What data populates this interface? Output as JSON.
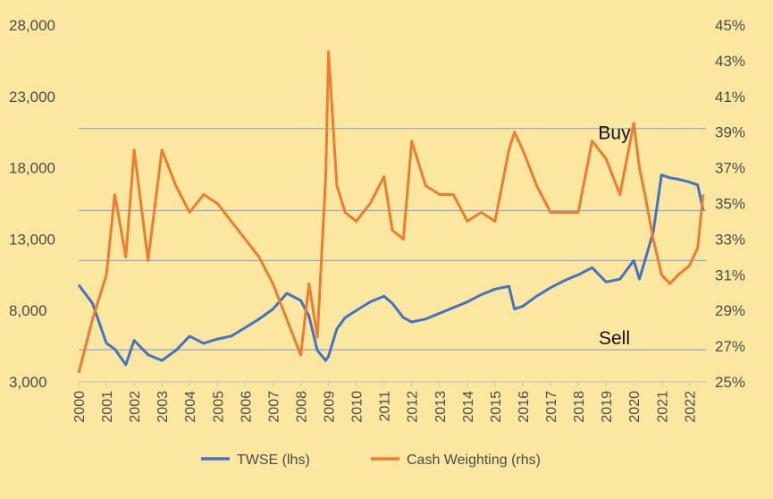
{
  "background_color": "#FCE7A0",
  "chart_data": {
    "type": "line",
    "title": "",
    "x": [
      2000,
      2000.5,
      2001,
      2001.3,
      2001.7,
      2002,
      2002.5,
      2003,
      2003.5,
      2004,
      2004.5,
      2005,
      2005.5,
      2006,
      2006.5,
      2007,
      2007.5,
      2008,
      2008.3,
      2008.6,
      2008.9,
      2009,
      2009.3,
      2009.6,
      2010,
      2010.5,
      2011,
      2011.3,
      2011.7,
      2012,
      2012.5,
      2013,
      2013.5,
      2014,
      2014.5,
      2015,
      2015.5,
      2015.7,
      2016,
      2016.5,
      2017,
      2017.5,
      2018,
      2018.5,
      2019,
      2019.5,
      2020,
      2020.2,
      2020.4,
      2020.7,
      2021,
      2021.3,
      2021.6,
      2022,
      2022.3,
      2022.5
    ],
    "series": [
      {
        "name": "TWSE (lhs)",
        "axis": "left",
        "color": "#4472C4",
        "values": [
          9800,
          8500,
          5700,
          5300,
          4200,
          5900,
          4900,
          4500,
          5200,
          6200,
          5700,
          6000,
          6200,
          6800,
          7400,
          8100,
          9200,
          8700,
          7600,
          5200,
          4500,
          4800,
          6700,
          7500,
          8000,
          8600,
          9000,
          8500,
          7500,
          7200,
          7400,
          7800,
          8200,
          8600,
          9100,
          9500,
          9700,
          8100,
          8300,
          9000,
          9600,
          10100,
          10500,
          11000,
          10000,
          10200,
          11500,
          10200,
          11500,
          13500,
          17500,
          17300,
          17200,
          17000,
          16800,
          15000
        ]
      },
      {
        "name": "Cash Weighting (rhs)",
        "axis": "right",
        "color": "#ED7D31",
        "values": [
          25.5,
          28.5,
          31,
          35.5,
          32,
          38,
          31.8,
          38,
          36,
          34.5,
          35.5,
          35,
          34,
          33,
          32,
          30.5,
          28.5,
          26.5,
          30.5,
          27.5,
          36.5,
          43.5,
          36,
          34.5,
          34,
          35,
          36.5,
          33.5,
          33,
          38.5,
          36,
          35.5,
          35.5,
          34,
          34.5,
          34,
          38,
          39,
          38,
          36,
          34.5,
          34.5,
          34.5,
          38.5,
          37.5,
          35.5,
          39.5,
          37,
          35.5,
          33,
          31,
          30.5,
          31,
          31.5,
          32.5,
          35.5
        ]
      }
    ],
    "x_ticks": [
      "2000",
      "2001",
      "2002",
      "2003",
      "2004",
      "2005",
      "2006",
      "2007",
      "2008",
      "2009",
      "2010",
      "2011",
      "2012",
      "2013",
      "2014",
      "2015",
      "2016",
      "2017",
      "2018",
      "2019",
      "2020",
      "2021",
      "2022"
    ],
    "y_left_ticks": [
      "3,000",
      "8,000",
      "13,000",
      "18,000",
      "23,000",
      "28,000"
    ],
    "y_right_ticks": [
      "25%",
      "27%",
      "29%",
      "31%",
      "33%",
      "35%",
      "37%",
      "39%",
      "41%",
      "43%",
      "45%"
    ],
    "ylim_left": [
      3000,
      28000
    ],
    "ylim_right": [
      25,
      45
    ],
    "xlim": [
      2000,
      2022.6
    ],
    "grid": false,
    "reference_lines_right": [
      39.2,
      34.6,
      31.8,
      26.8
    ],
    "reference_line_color": "#8FA6C8",
    "annotations": [
      {
        "text": "Buy",
        "x": 2019.3,
        "y_right": 38.6
      },
      {
        "text": "Sell",
        "x": 2019.3,
        "y_right": 27.1
      }
    ],
    "legend_position": "bottom",
    "legend": [
      "TWSE (lhs)",
      "Cash Weighting (rhs)"
    ]
  }
}
